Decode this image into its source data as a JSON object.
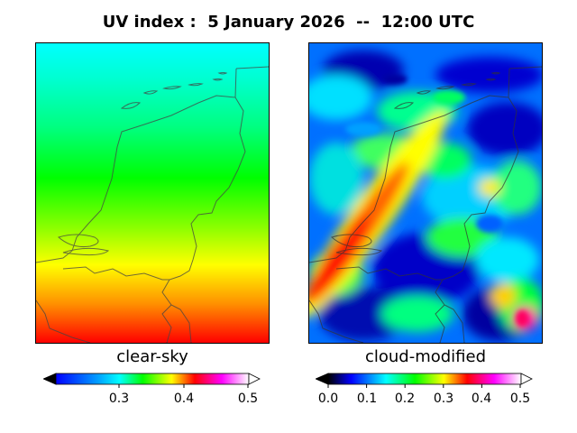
{
  "title": "UV index :  5 January 2026  --  12:00 UTC",
  "panels": [
    {
      "label": "clear-sky",
      "colorbar": {
        "range": [
          0.2,
          0.5
        ],
        "ticks": [
          "0.3",
          "0.4",
          "0.5"
        ],
        "extend": "both"
      }
    },
    {
      "label": "cloud-modified",
      "colorbar": {
        "range": [
          0.0,
          0.5
        ],
        "ticks": [
          "0.0",
          "0.1",
          "0.2",
          "0.3",
          "0.4",
          "0.5"
        ],
        "extend": "both"
      }
    }
  ],
  "colormap": [
    "#000000",
    "#0000ff",
    "#00ffff",
    "#00ff00",
    "#ffff00",
    "#ff0000",
    "#ff00ff",
    "#ffffff"
  ],
  "clear_sky_gradient_stops": [
    {
      "value_label": "north",
      "color": "#00ffff"
    },
    {
      "value_label": "mid",
      "color": "#00ff00"
    },
    {
      "value_label": "south-mid",
      "color": "#ffff00"
    },
    {
      "value_label": "south",
      "color": "#ff0000"
    }
  ]
}
